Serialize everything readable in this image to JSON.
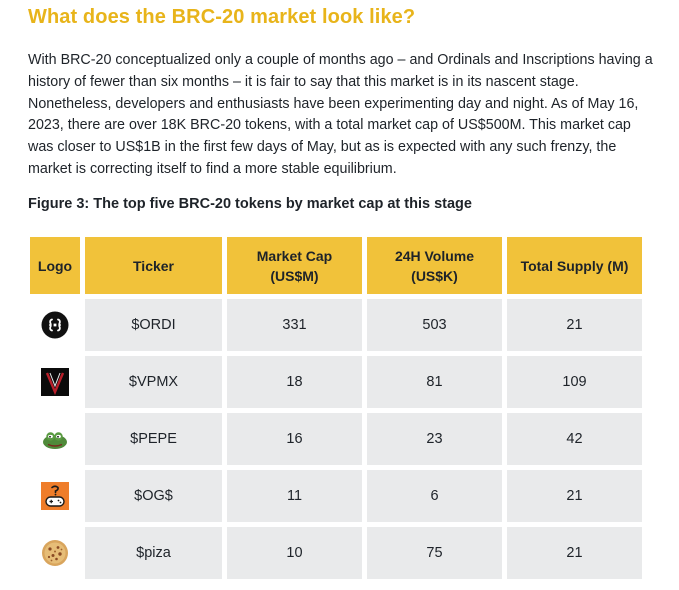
{
  "heading": "What does the BRC-20 market look like?",
  "paragraph": "With BRC-20 conceptualized only a couple of months ago – and Ordinals and Inscriptions having a history of fewer than six months – it is fair to say that this market is in its nascent stage. Nonetheless, developers and enthusiasts have been experimenting day and night. As of May 16, 2023, there are over 18K BRC-20 tokens, with a total market cap of US$500M. This market cap was closer to US$1B in the first few days of May, but as is expected with any such frenzy, the market is correcting itself to find a more stable equilibrium.",
  "figure_caption": "Figure 3: The top five BRC-20 tokens by market cap at this stage",
  "table": {
    "headers": {
      "logo": "Logo",
      "ticker": "Ticker",
      "market_cap": [
        "Market Cap",
        "(US$M)"
      ],
      "volume": [
        "24H Volume",
        "(US$K)"
      ],
      "supply": "Total Supply (M)"
    },
    "rows": [
      {
        "logo_icon": "ordi-logo-icon",
        "ticker": "$ORDI",
        "market_cap": "331",
        "volume": "503",
        "supply": "21"
      },
      {
        "logo_icon": "vpmx-logo-icon",
        "ticker": "$VPMX",
        "market_cap": "18",
        "volume": "81",
        "supply": "109"
      },
      {
        "logo_icon": "pepe-logo-icon",
        "ticker": "$PEPE",
        "market_cap": "16",
        "volume": "23",
        "supply": "42"
      },
      {
        "logo_icon": "og-logo-icon",
        "ticker": "$OG$",
        "market_cap": "11",
        "volume": "6",
        "supply": "21"
      },
      {
        "logo_icon": "piza-logo-icon",
        "ticker": "$piza",
        "market_cap": "10",
        "volume": "75",
        "supply": "21"
      }
    ]
  },
  "colors": {
    "heading": "#e8b41a",
    "header_fill": "#f1c23a",
    "cell_fill": "#e9eaeb",
    "text": "#1e2329"
  }
}
